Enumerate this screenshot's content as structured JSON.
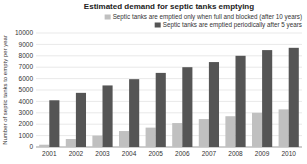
{
  "chart_data": {
    "type": "bar",
    "title": "Estimated demand for septic tanks emptying",
    "ylabel": "Number of septic tanks to empty per year",
    "categories": [
      "2001",
      "2002",
      "2003",
      "2004",
      "2005",
      "2006",
      "2007",
      "2008",
      "2009",
      "2010"
    ],
    "series": [
      {
        "name": "Septic tanks are emptied only when full and blocked (after 10 years)",
        "color": "#c0c0c0",
        "values": [
          200,
          700,
          1000,
          1400,
          1700,
          2100,
          2450,
          2700,
          3000,
          3300
        ]
      },
      {
        "name": "Septic tanks are emptied periodically after 5 years",
        "color": "#555555",
        "values": [
          4100,
          4750,
          5400,
          5950,
          6500,
          7000,
          7450,
          8000,
          8500,
          8700
        ]
      }
    ],
    "ylim": [
      0,
      10000
    ],
    "yticks": [
      0,
      1000,
      2000,
      3000,
      4000,
      5000,
      6000,
      7000,
      8000,
      9000,
      10000
    ],
    "grid": true,
    "legend": "upper right"
  }
}
